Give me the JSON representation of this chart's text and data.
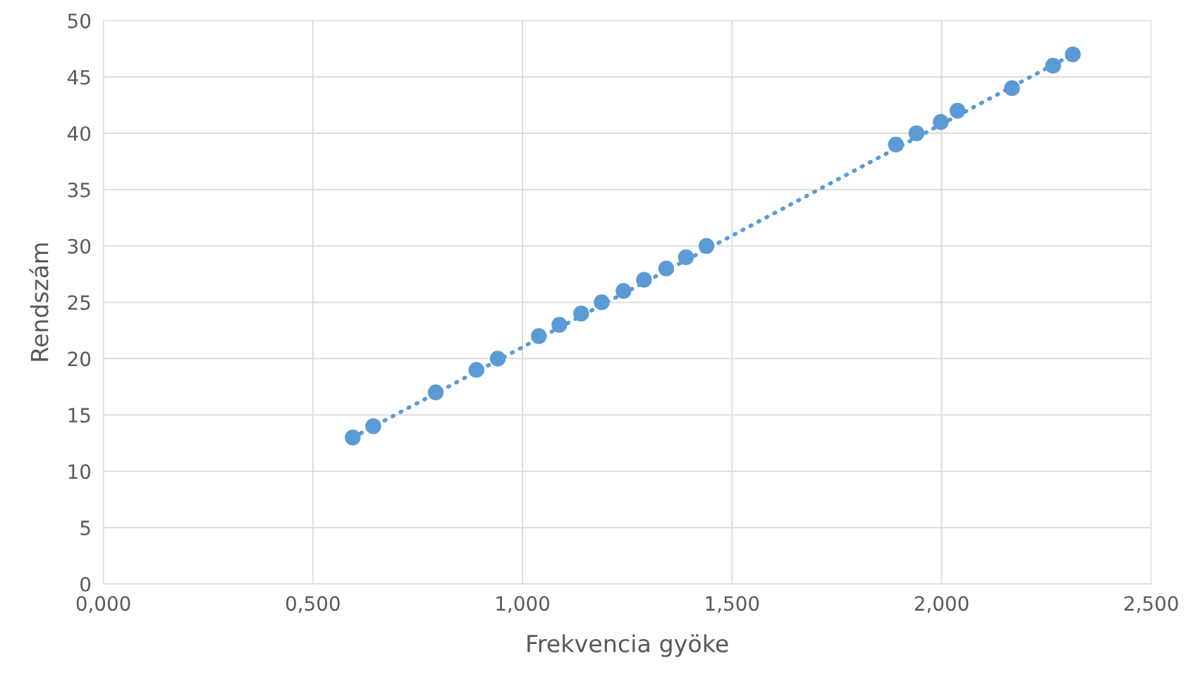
{
  "chart_data": {
    "type": "scatter",
    "xlabel": "Frekvencia gyöke",
    "ylabel": "Rendszám",
    "xlim": [
      0,
      2.5
    ],
    "ylim": [
      0,
      50
    ],
    "xticks": [
      {
        "value": 0,
        "label": "0,000"
      },
      {
        "value": 0.5,
        "label": "0,500"
      },
      {
        "value": 1.0,
        "label": "1,000"
      },
      {
        "value": 1.5,
        "label": "1,500"
      },
      {
        "value": 2.0,
        "label": "2,000"
      },
      {
        "value": 2.5,
        "label": "2,500"
      }
    ],
    "yticks": [
      0,
      5,
      10,
      15,
      20,
      25,
      30,
      35,
      40,
      45,
      50
    ],
    "grid": true,
    "series": [
      {
        "marker": "circle",
        "color": "#5b9bd5",
        "x": [
          0.595,
          0.644,
          0.793,
          0.89,
          0.941,
          1.039,
          1.088,
          1.14,
          1.189,
          1.241,
          1.29,
          1.343,
          1.39,
          1.439,
          1.891,
          1.94,
          1.998,
          2.038,
          2.168,
          2.266,
          2.313
        ],
        "values": [
          13,
          14,
          17,
          19,
          20,
          22,
          23,
          24,
          25,
          26,
          27,
          28,
          29,
          30,
          39,
          40,
          41,
          42,
          44,
          46,
          47
        ]
      },
      {
        "type": "line",
        "color": "#5b9bd5",
        "line_style": "dotted",
        "x": [
          0.595,
          2.313
        ],
        "values": [
          13.0,
          47.0
        ]
      }
    ]
  }
}
